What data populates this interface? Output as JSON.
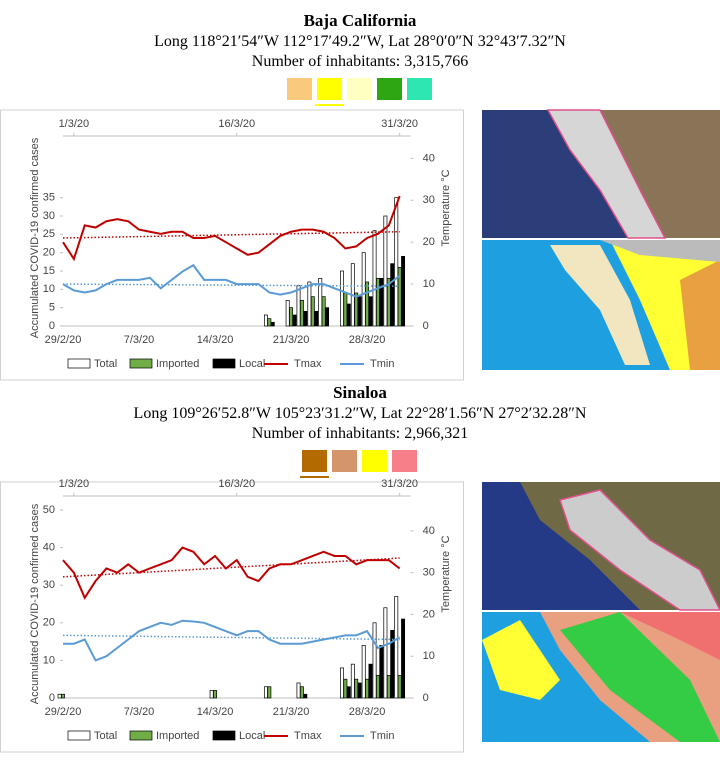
{
  "chart_data": [
    {
      "type": "bar_line",
      "title": "Baja California",
      "subtitle": "Long 118°21′54″W 112°17′49.2″W, Lat 28°0′0″N 32°43′7.32″N",
      "inhabitants": "Number of inhabitants: 3,315,766",
      "swatches": [
        "#f9c97d",
        "#ffff00",
        "#ffffc0",
        "#2ea614",
        "#2ee6b0"
      ],
      "selected_swatch": 1,
      "y_label": "Accumulated COVID-19 confirmed cases",
      "y2_label": "Temperature °C",
      "categories": [
        "29/2/20",
        null,
        null,
        null,
        null,
        null,
        null,
        "7/3/20",
        null,
        null,
        null,
        null,
        null,
        null,
        "14/3/20",
        null,
        null,
        null,
        null,
        null,
        null,
        "21/3/20",
        null,
        null,
        null,
        null,
        null,
        null,
        "28/3/20",
        null,
        null,
        null
      ],
      "top_categories": [
        null,
        "1/3/20",
        null,
        null,
        null,
        null,
        null,
        null,
        null,
        null,
        null,
        null,
        null,
        null,
        null,
        null,
        "16/3/20",
        null,
        null,
        null,
        null,
        null,
        null,
        null,
        null,
        null,
        null,
        null,
        null,
        null,
        null,
        "31/3/20"
      ],
      "ylim": [
        0,
        48
      ],
      "yticks": [
        0,
        5,
        10,
        15,
        20,
        25,
        30,
        35
      ],
      "y2lim": [
        0,
        42
      ],
      "y2ticks": [
        0,
        10,
        20,
        30,
        40
      ],
      "series": [
        {
          "name": "Total",
          "kind": "bar",
          "color": "#ffffff",
          "values": [
            0,
            0,
            0,
            0,
            0,
            0,
            0,
            0,
            0,
            0,
            0,
            0,
            0,
            0,
            0,
            0,
            0,
            0,
            0,
            3,
            0,
            7,
            11,
            12,
            13,
            0,
            15,
            17,
            20,
            26,
            30,
            35
          ]
        },
        {
          "name": "Imported",
          "kind": "bar",
          "color": "#70ad47",
          "values": [
            0,
            0,
            0,
            0,
            0,
            0,
            0,
            0,
            0,
            0,
            0,
            0,
            0,
            0,
            0,
            0,
            0,
            0,
            0,
            2,
            0,
            5,
            7,
            8,
            8,
            0,
            9,
            9,
            12,
            13,
            13,
            16
          ]
        },
        {
          "name": "Local",
          "kind": "bar",
          "color": "#000000",
          "values": [
            0,
            0,
            0,
            0,
            0,
            0,
            0,
            0,
            0,
            0,
            0,
            0,
            0,
            0,
            0,
            0,
            0,
            0,
            0,
            1,
            0,
            3,
            4,
            4,
            5,
            0,
            6,
            8,
            8,
            13,
            17,
            19
          ]
        },
        {
          "name": "Tmax",
          "kind": "line",
          "axis": "y2",
          "color": "#c00000",
          "trend": [
            21,
            22.5
          ],
          "values": [
            20,
            16,
            24,
            23.5,
            25,
            25.5,
            25,
            23,
            22.5,
            22,
            22.5,
            22.5,
            21,
            21,
            21.5,
            20,
            18.5,
            17,
            17.5,
            19.5,
            21.5,
            22.5,
            23,
            23,
            22.5,
            21,
            18.5,
            19,
            21,
            22,
            24,
            31
          ]
        },
        {
          "name": "Tmin",
          "kind": "line",
          "axis": "y2",
          "color": "#5b9bd5",
          "trend": [
            10,
            9.5
          ],
          "values": [
            10,
            8.5,
            8,
            8.5,
            10,
            11,
            11,
            11,
            11.5,
            9,
            11,
            13,
            14.5,
            11,
            11,
            11,
            10,
            10,
            10,
            8,
            7.5,
            8,
            9,
            10,
            10,
            9,
            8,
            7,
            8,
            9,
            10,
            12
          ]
        }
      ]
    },
    {
      "type": "bar_line",
      "title": "Sinaloa",
      "subtitle": "Long 109°26′52.8″W 105°23′31.2″W, Lat 22°28′1.56″N 27°2′32.28″N",
      "inhabitants": "Number of inhabitants: 2,966,321",
      "swatches": [
        "#b36a00",
        "#d4956a",
        "#ffff00",
        "#f77f8a"
      ],
      "selected_swatch": 0,
      "y_label": "Accumulated COVID-19 confirmed cases",
      "y2_label": "Temperature °C",
      "categories": [
        "29/2/20",
        null,
        null,
        null,
        null,
        null,
        null,
        "7/3/20",
        null,
        null,
        null,
        null,
        null,
        null,
        "14/3/20",
        null,
        null,
        null,
        null,
        null,
        null,
        "21/3/20",
        null,
        null,
        null,
        null,
        null,
        null,
        "28/3/20",
        null,
        null,
        null
      ],
      "top_categories": [
        null,
        "1/3/20",
        null,
        null,
        null,
        null,
        null,
        null,
        null,
        null,
        null,
        null,
        null,
        null,
        null,
        null,
        "16/3/20",
        null,
        null,
        null,
        null,
        null,
        null,
        null,
        null,
        null,
        null,
        null,
        null,
        null,
        null,
        "31/3/20"
      ],
      "ylim": [
        0,
        50
      ],
      "yticks": [
        0,
        10,
        20,
        30,
        40,
        50
      ],
      "y2lim": [
        0,
        45
      ],
      "y2ticks": [
        0,
        10,
        20,
        30,
        40
      ],
      "series": [
        {
          "name": "Total",
          "kind": "bar",
          "color": "#ffffff",
          "values": [
            1,
            0,
            0,
            0,
            0,
            0,
            0,
            0,
            0,
            0,
            0,
            0,
            0,
            0,
            2,
            0,
            0,
            0,
            0,
            3,
            0,
            0,
            4,
            0,
            0,
            0,
            8,
            9,
            14,
            20,
            24,
            27
          ]
        },
        {
          "name": "Imported",
          "kind": "bar",
          "color": "#70ad47",
          "values": [
            1,
            0,
            0,
            0,
            0,
            0,
            0,
            0,
            0,
            0,
            0,
            0,
            0,
            0,
            2,
            0,
            0,
            0,
            0,
            3,
            0,
            0,
            3,
            0,
            0,
            0,
            5,
            5,
            5,
            6,
            6,
            6
          ]
        },
        {
          "name": "Local",
          "kind": "bar",
          "color": "#000000",
          "values": [
            0,
            0,
            0,
            0,
            0,
            0,
            0,
            0,
            0,
            0,
            0,
            0,
            0,
            0,
            0,
            0,
            0,
            0,
            0,
            0,
            0,
            0,
            1,
            0,
            0,
            0,
            3,
            4,
            9,
            14,
            18,
            21
          ]
        },
        {
          "name": "Tmax",
          "kind": "line",
          "axis": "y2",
          "color": "#c00000",
          "trend": [
            29,
            33.5
          ],
          "values": [
            33,
            30,
            24,
            28,
            31,
            30,
            32,
            30,
            31,
            32,
            33,
            36,
            35,
            32,
            34,
            31,
            33,
            29,
            28,
            31,
            32,
            32,
            33,
            34,
            35,
            34,
            34,
            32,
            33,
            33,
            33,
            31
          ]
        },
        {
          "name": "Tmin",
          "kind": "line",
          "axis": "y2",
          "color": "#5b9bd5",
          "trend": [
            15,
            14
          ],
          "values": [
            13,
            13,
            14,
            9,
            10,
            12,
            14,
            16,
            17,
            18,
            17.5,
            18.5,
            18.3,
            18,
            17,
            16,
            15,
            16,
            16,
            14,
            13,
            13,
            13,
            13.5,
            14,
            14.5,
            15,
            15,
            16,
            12,
            13,
            14.5
          ]
        }
      ]
    }
  ]
}
